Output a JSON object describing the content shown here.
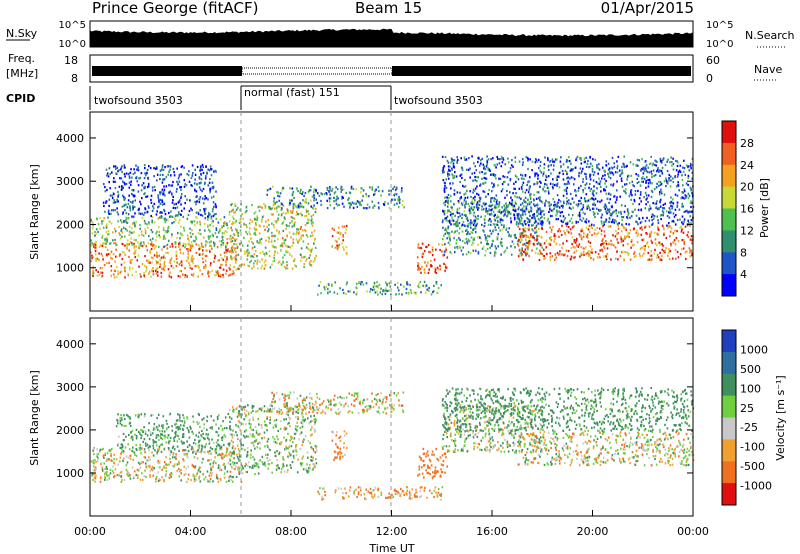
{
  "header": {
    "station": "Prince George (fitACF)",
    "beam": "Beam 15",
    "date": "01/Apr/2015"
  },
  "summary_panels": {
    "nsky": {
      "label": "N.Sky",
      "ticks": [
        "10^5",
        "10^0"
      ],
      "right_ticks": [
        "10^5",
        "10^0"
      ],
      "right_label": "N.Search"
    },
    "freq": {
      "label_top": "Freq.",
      "label_bottom": "[MHz]",
      "ticks": [
        "18",
        "8"
      ],
      "right_ticks": [
        "60",
        "0"
      ],
      "right_label": "Nave"
    },
    "cpid": {
      "label": "CPID",
      "segments": [
        {
          "name": "twofsound 3503",
          "start_hour": 0,
          "end_hour": 6
        },
        {
          "name": "normal (fast) 151",
          "start_hour": 6,
          "end_hour": 12
        },
        {
          "name": "twofsound 3503",
          "start_hour": 12,
          "end_hour": 24
        }
      ]
    }
  },
  "x_axis": {
    "title": "Time UT",
    "tick_labels": [
      "00:00",
      "04:00",
      "08:00",
      "12:00",
      "16:00",
      "20:00",
      "00:00"
    ],
    "range_hours": [
      0,
      24
    ]
  },
  "chart_data": [
    {
      "type": "heatmap",
      "title": "Power",
      "ylabel": "Slant Range [km]",
      "xlabel": "Time UT",
      "xlim_hours": [
        0,
        24
      ],
      "ylim": [
        0,
        4600
      ],
      "y_ticks": [
        1000,
        2000,
        3000,
        4000
      ],
      "colorbar": {
        "label": "Power [dB]",
        "tick_labels": [
          "28",
          "24",
          "20",
          "16",
          "12",
          "8",
          "4"
        ],
        "colors": [
          "#0000ff",
          "#1e56c8",
          "#2f8f6f",
          "#4fbf4f",
          "#c8d834",
          "#f4a020",
          "#f06020",
          "#e01010"
        ]
      },
      "scatter_regions": [
        {
          "name": "early-band-low",
          "t0": 0.0,
          "t1": 6.0,
          "r0": 800,
          "r1": 1600,
          "level": 0.75
        },
        {
          "name": "early-band-mid",
          "t0": 0.0,
          "t1": 5.5,
          "r0": 1500,
          "r1": 2200,
          "level": 0.45
        },
        {
          "name": "early-sparse-high",
          "t0": 0.5,
          "t1": 5.0,
          "r0": 2200,
          "r1": 3400,
          "level": 0.15
        },
        {
          "name": "morning-arc",
          "t0": 5.5,
          "t1": 9.0,
          "r0": 1000,
          "r1": 2500,
          "level": 0.55
        },
        {
          "name": "overhead-arc",
          "t0": 7.0,
          "t1": 12.5,
          "r0": 2400,
          "r1": 2900,
          "level": 0.3
        },
        {
          "name": "noon-blob-1",
          "t0": 9.6,
          "t1": 10.2,
          "r0": 1300,
          "r1": 2000,
          "level": 0.7
        },
        {
          "name": "noon-blob-2",
          "t0": 13.0,
          "t1": 14.2,
          "r0": 900,
          "r1": 1600,
          "level": 0.85
        },
        {
          "name": "low-echo",
          "t0": 9.0,
          "t1": 14.0,
          "r0": 400,
          "r1": 700,
          "level": 0.35
        },
        {
          "name": "afternoon-band",
          "t0": 14.0,
          "t1": 18.0,
          "r0": 1300,
          "r1": 2600,
          "level": 0.35
        },
        {
          "name": "evening-band-strong",
          "t0": 17.0,
          "t1": 24.0,
          "r0": 1200,
          "r1": 2000,
          "level": 0.8
        },
        {
          "name": "evening-sparse",
          "t0": 14.0,
          "t1": 24.0,
          "r0": 2000,
          "r1": 3600,
          "level": 0.2
        }
      ]
    },
    {
      "type": "heatmap",
      "title": "Velocity",
      "ylabel": "Slant Range [km]",
      "xlabel": "Time UT",
      "xlim_hours": [
        0,
        24
      ],
      "ylim": [
        0,
        4600
      ],
      "y_ticks": [
        1000,
        2000,
        3000,
        4000
      ],
      "colorbar": {
        "label": "Velocity [m s⁻¹]",
        "tick_labels": [
          "1000",
          "500",
          "100",
          "25",
          "-25",
          "-100",
          "-500",
          "-1000"
        ],
        "colors": [
          "#1f3fbf",
          "#2f6f9f",
          "#3f8f5f",
          "#6fcf3f",
          "#c8c8c8",
          "#f0a030",
          "#f07020",
          "#e01010"
        ]
      },
      "scatter_regions": [
        {
          "name": "early-gray-band",
          "t0": 0.0,
          "t1": 6.0,
          "r0": 800,
          "r1": 1600,
          "value": 0
        },
        {
          "name": "early-mixed",
          "t0": 1.0,
          "t1": 5.5,
          "r0": 1500,
          "r1": 2400,
          "value": 150
        },
        {
          "name": "morning-arc",
          "t0": 5.5,
          "t1": 9.0,
          "r0": 1000,
          "r1": 2600,
          "value": 80
        },
        {
          "name": "overhead-arc",
          "t0": 7.0,
          "t1": 12.5,
          "r0": 2400,
          "r1": 2900,
          "value": 0
        },
        {
          "name": "noon-orange",
          "t0": 9.6,
          "t1": 10.2,
          "r0": 1300,
          "r1": 2000,
          "value": -150
        },
        {
          "name": "noon-orange-2",
          "t0": 13.0,
          "t1": 14.2,
          "r0": 900,
          "r1": 1600,
          "value": -300
        },
        {
          "name": "low-echo",
          "t0": 9.0,
          "t1": 14.0,
          "r0": 400,
          "r1": 700,
          "value": -100
        },
        {
          "name": "afternoon",
          "t0": 14.0,
          "t1": 18.0,
          "r0": 1500,
          "r1": 2600,
          "value": 60
        },
        {
          "name": "evening-gray",
          "t0": 17.0,
          "t1": 24.0,
          "r0": 1200,
          "r1": 2000,
          "value": 0
        },
        {
          "name": "evening-sparse",
          "t0": 14.0,
          "t1": 24.0,
          "r0": 2000,
          "r1": 3000,
          "value": 200
        }
      ]
    }
  ]
}
